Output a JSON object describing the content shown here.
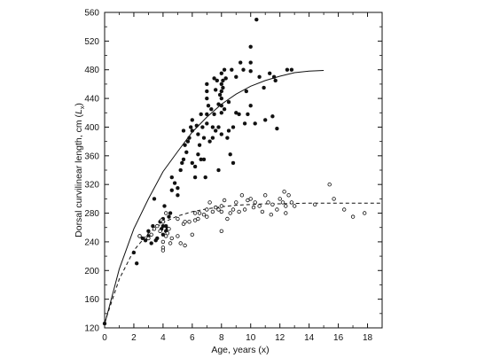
{
  "chart_data": {
    "type": "scatter",
    "title": "",
    "xlabel": "Age, years (x)",
    "ylabel": "Dorsal curvilinear length, cm (Lx)",
    "ylabel_main": "Dorsal curvilinear length, cm (",
    "ylabel_sym": "L",
    "ylabel_sub": "x",
    "ylabel_close": ")",
    "xlim": [
      0,
      19
    ],
    "ylim": [
      120,
      560
    ],
    "x_ticks": [
      "0",
      "2",
      "4",
      "6",
      "8",
      "10",
      "12",
      "14",
      "16",
      "18"
    ],
    "y_ticks": [
      "120",
      "160",
      "200",
      "240",
      "280",
      "320",
      "360",
      "400",
      "440",
      "480",
      "520",
      "560"
    ],
    "grid": false,
    "series": [
      {
        "marker": "filled",
        "points": [
          [
            0,
            126
          ],
          [
            2,
            225
          ],
          [
            2.2,
            210
          ],
          [
            2.4,
            248
          ],
          [
            2.6,
            245
          ],
          [
            2.8,
            242
          ],
          [
            3,
            255
          ],
          [
            3,
            248
          ],
          [
            3.2,
            238
          ],
          [
            3.3,
            262
          ],
          [
            3.4,
            300
          ],
          [
            3.5,
            242
          ],
          [
            3.6,
            245
          ],
          [
            3.8,
            268
          ],
          [
            3.9,
            258
          ],
          [
            4,
            250
          ],
          [
            4,
            262
          ],
          [
            4,
            272
          ],
          [
            4.1,
            290
          ],
          [
            4.2,
            262
          ],
          [
            4.2,
            255
          ],
          [
            4.3,
            258
          ],
          [
            4.4,
            275
          ],
          [
            4.5,
            280
          ],
          [
            4.6,
            312
          ],
          [
            4.6,
            330
          ],
          [
            4.8,
            322
          ],
          [
            5,
            305
          ],
          [
            5,
            315
          ],
          [
            5.2,
            340
          ],
          [
            5.3,
            350
          ],
          [
            5.4,
            355
          ],
          [
            5.4,
            395
          ],
          [
            5.5,
            375
          ],
          [
            5.6,
            365
          ],
          [
            5.7,
            380
          ],
          [
            5.8,
            385
          ],
          [
            5.9,
            400
          ],
          [
            6,
            410
          ],
          [
            6,
            395
          ],
          [
            6,
            350
          ],
          [
            6.2,
            345
          ],
          [
            6.2,
            330
          ],
          [
            6.3,
            402
          ],
          [
            6.4,
            390
          ],
          [
            6.4,
            362
          ],
          [
            6.5,
            375
          ],
          [
            6.6,
            355
          ],
          [
            6.6,
            418
          ],
          [
            6.7,
            400
          ],
          [
            6.8,
            355
          ],
          [
            6.8,
            385
          ],
          [
            6.9,
            330
          ],
          [
            7,
            405
          ],
          [
            7,
            440
          ],
          [
            7,
            460
          ],
          [
            7,
            450
          ],
          [
            7,
            418
          ],
          [
            7.1,
            430
          ],
          [
            7.2,
            380
          ],
          [
            7.3,
            425
          ],
          [
            7.4,
            400
          ],
          [
            7.4,
            385
          ],
          [
            7.5,
            468
          ],
          [
            7.5,
            418
          ],
          [
            7.6,
            452
          ],
          [
            7.6,
            395
          ],
          [
            7.7,
            465
          ],
          [
            7.8,
            432
          ],
          [
            7.8,
            400
          ],
          [
            7.8,
            340
          ],
          [
            7.9,
            445
          ],
          [
            8,
            475
          ],
          [
            8,
            460
          ],
          [
            8,
            450
          ],
          [
            8,
            440
          ],
          [
            8,
            430
          ],
          [
            8,
            420
          ],
          [
            8,
            390
          ],
          [
            8.1,
            465
          ],
          [
            8.1,
            455
          ],
          [
            8.2,
            425
          ],
          [
            8.2,
            480
          ],
          [
            8.3,
            468
          ],
          [
            8.4,
            385
          ],
          [
            8.5,
            435
          ],
          [
            8.5,
            395
          ],
          [
            8.6,
            362
          ],
          [
            8.7,
            480
          ],
          [
            8.8,
            400
          ],
          [
            8.8,
            350
          ],
          [
            9,
            420
          ],
          [
            9,
            470
          ],
          [
            9.2,
            418
          ],
          [
            9.3,
            490
          ],
          [
            9.5,
            480
          ],
          [
            9.6,
            405
          ],
          [
            9.7,
            450
          ],
          [
            9.8,
            418
          ],
          [
            10,
            490
          ],
          [
            10,
            512
          ],
          [
            10,
            478
          ],
          [
            10,
            430
          ],
          [
            10.3,
            405
          ],
          [
            10.4,
            550
          ],
          [
            10.6,
            470
          ],
          [
            10.9,
            455
          ],
          [
            11,
            410
          ],
          [
            11.3,
            475
          ],
          [
            11.5,
            415
          ],
          [
            11.6,
            470
          ],
          [
            11.8,
            398
          ],
          [
            11.7,
            465
          ],
          [
            12.5,
            480
          ],
          [
            12.8,
            480
          ]
        ]
      },
      {
        "marker": "open",
        "points": [
          [
            2.4,
            248
          ],
          [
            3,
            245
          ],
          [
            3.2,
            250
          ],
          [
            3.4,
            258
          ],
          [
            3.6,
            262
          ],
          [
            3.8,
            255
          ],
          [
            3.9,
            270
          ],
          [
            4,
            240
          ],
          [
            4,
            232
          ],
          [
            4,
            228
          ],
          [
            4,
            268
          ],
          [
            4.2,
            248
          ],
          [
            4.2,
            280
          ],
          [
            4.3,
            252
          ],
          [
            4.4,
            258
          ],
          [
            4.5,
            238
          ],
          [
            4.6,
            245
          ],
          [
            5,
            248
          ],
          [
            5,
            272
          ],
          [
            5.2,
            238
          ],
          [
            5.4,
            265
          ],
          [
            5.5,
            235
          ],
          [
            5.5,
            268
          ],
          [
            5.8,
            268
          ],
          [
            6,
            250
          ],
          [
            6.2,
            270
          ],
          [
            6.2,
            280
          ],
          [
            6.4,
            272
          ],
          [
            6.5,
            280
          ],
          [
            6.8,
            278
          ],
          [
            7,
            285
          ],
          [
            7,
            275
          ],
          [
            7.2,
            295
          ],
          [
            7.4,
            282
          ],
          [
            7.6,
            288
          ],
          [
            7.8,
            285
          ],
          [
            8,
            290
          ],
          [
            8,
            282
          ],
          [
            8,
            255
          ],
          [
            8.2,
            298
          ],
          [
            8.4,
            272
          ],
          [
            8.6,
            280
          ],
          [
            8.8,
            285
          ],
          [
            9,
            295
          ],
          [
            9.2,
            282
          ],
          [
            9.4,
            305
          ],
          [
            9.6,
            285
          ],
          [
            9.8,
            298
          ],
          [
            10,
            300
          ],
          [
            10.2,
            288
          ],
          [
            10.3,
            295
          ],
          [
            10.6,
            290
          ],
          [
            10.8,
            282
          ],
          [
            11,
            305
          ],
          [
            11.2,
            295
          ],
          [
            11.4,
            278
          ],
          [
            11.5,
            292
          ],
          [
            11.8,
            285
          ],
          [
            12,
            300
          ],
          [
            12.2,
            295
          ],
          [
            12.3,
            310
          ],
          [
            12.4,
            290
          ],
          [
            12.4,
            280
          ],
          [
            12.6,
            305
          ],
          [
            12.8,
            295
          ],
          [
            13,
            290
          ],
          [
            14.4,
            292
          ],
          [
            15.4,
            320
          ],
          [
            15.7,
            300
          ],
          [
            16.4,
            285
          ],
          [
            17,
            275
          ],
          [
            17.8,
            280
          ]
        ]
      }
    ],
    "curves": [
      {
        "style": "solid",
        "points": [
          [
            0,
            125
          ],
          [
            1,
            202
          ],
          [
            2,
            258
          ],
          [
            3,
            300
          ],
          [
            4,
            338
          ],
          [
            5,
            366
          ],
          [
            6,
            393
          ],
          [
            7,
            414
          ],
          [
            8,
            432
          ],
          [
            9,
            446
          ],
          [
            10,
            457
          ],
          [
            11,
            465
          ],
          [
            12,
            471
          ],
          [
            13,
            476
          ],
          [
            14,
            478
          ],
          [
            15,
            479
          ]
        ]
      },
      {
        "style": "dashed",
        "points": [
          [
            0,
            127
          ],
          [
            1,
            188
          ],
          [
            2,
            228
          ],
          [
            3,
            252
          ],
          [
            4,
            267
          ],
          [
            5,
            276
          ],
          [
            6,
            282
          ],
          [
            7,
            286
          ],
          [
            8,
            289
          ],
          [
            9,
            291
          ],
          [
            10,
            292
          ],
          [
            11,
            293
          ],
          [
            12,
            293
          ],
          [
            13,
            293.5
          ],
          [
            14,
            294
          ],
          [
            15,
            294
          ],
          [
            16,
            294
          ],
          [
            17,
            294
          ],
          [
            18,
            294
          ],
          [
            19,
            294
          ]
        ]
      }
    ]
  }
}
